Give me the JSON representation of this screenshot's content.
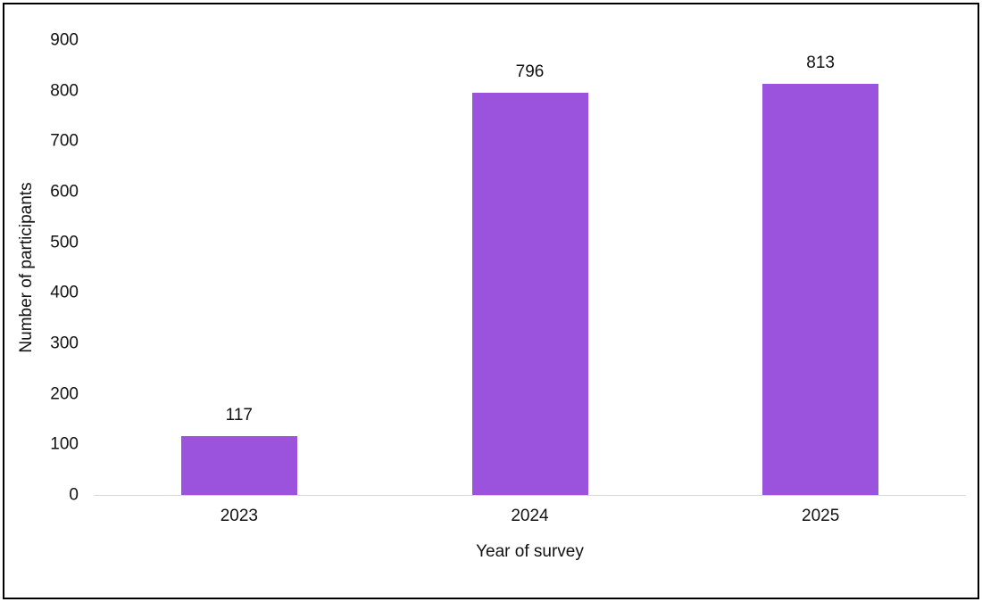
{
  "chart_data": {
    "type": "bar",
    "title": "",
    "categories": [
      "2023",
      "2024",
      "2025"
    ],
    "values": [
      117,
      796,
      813
    ],
    "data_labels": [
      "117",
      "796",
      "813"
    ],
    "xlabel": "Year of survey",
    "ylabel": "Number of participants",
    "ylim": [
      0,
      900
    ],
    "yticks": [
      0,
      100,
      200,
      300,
      400,
      500,
      600,
      700,
      800,
      900
    ],
    "grid": false,
    "legend_visible": false,
    "bar_color": "#9b53dd",
    "axis_line_color": "#d9d9d9",
    "text_color": "#111111",
    "frame_border_color": "#000000",
    "background_color": "#ffffff"
  }
}
